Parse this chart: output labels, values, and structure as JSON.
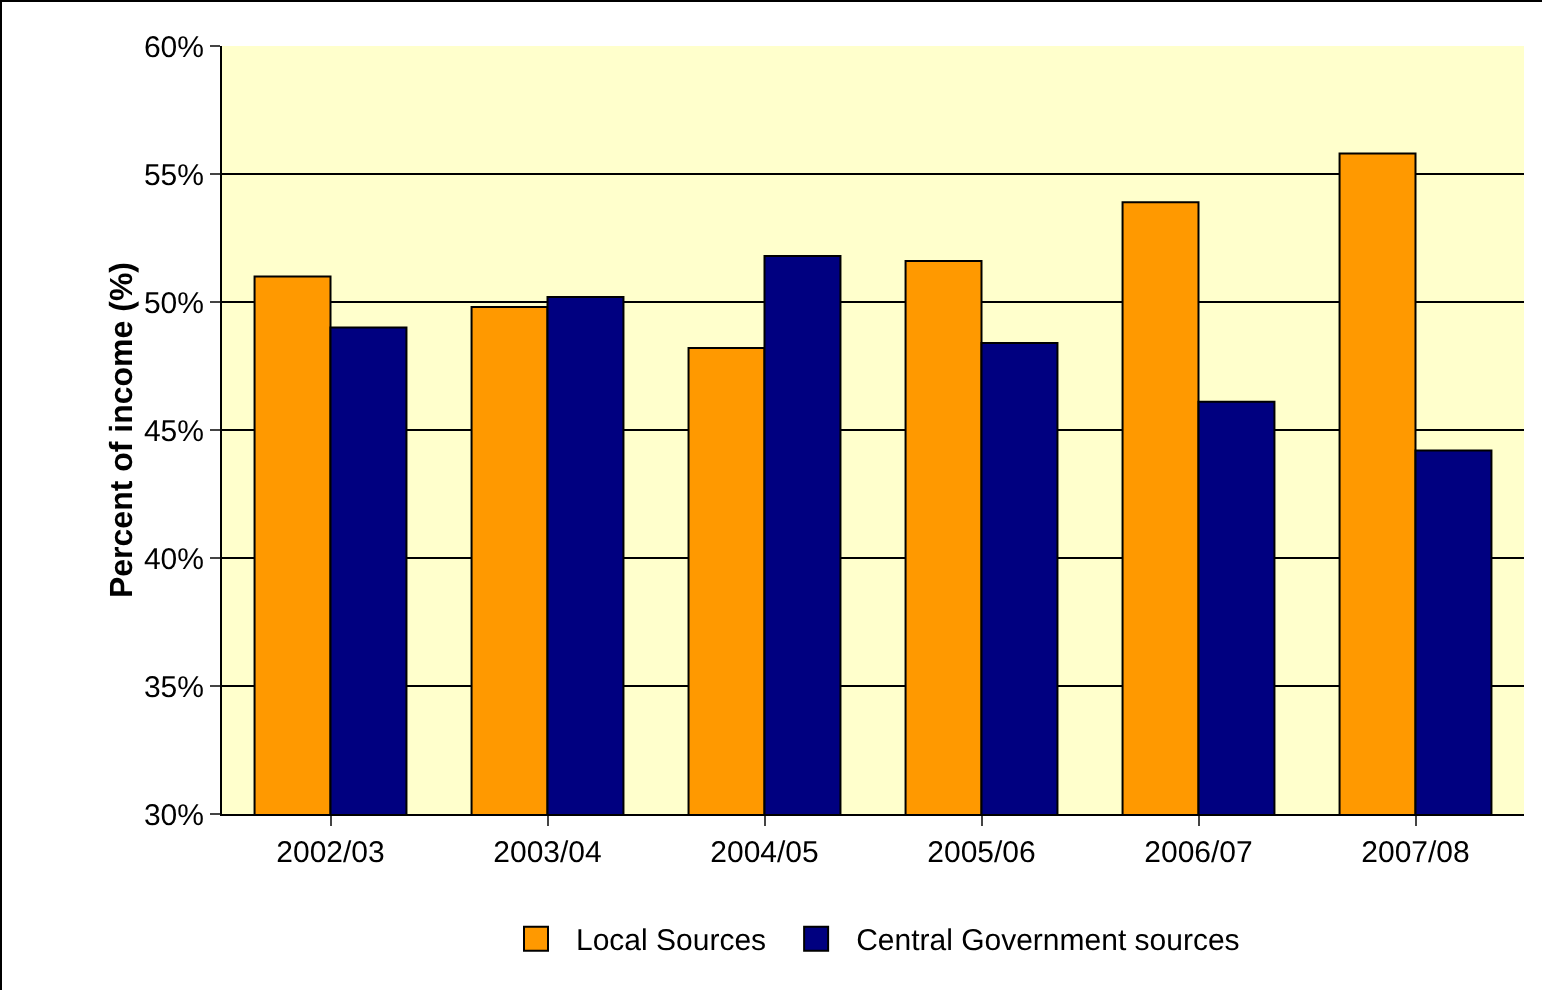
{
  "chart_data": {
    "type": "bar",
    "ylabel": "Percent of income (%)",
    "categories": [
      "2002/03",
      "2003/04",
      "2004/05",
      "2005/06",
      "2006/07",
      "2007/08"
    ],
    "series": [
      {
        "name": "Local Sources",
        "color": "#ff9900",
        "values": [
          51.0,
          49.8,
          48.2,
          51.6,
          53.9,
          55.8
        ]
      },
      {
        "name": "Central Government sources",
        "color": "#000080",
        "values": [
          49.0,
          50.2,
          51.8,
          48.4,
          46.1,
          44.2
        ]
      }
    ],
    "ylim": [
      30,
      60
    ],
    "yticks": [
      {
        "value": 30,
        "label": "30%"
      },
      {
        "value": 35,
        "label": "35%"
      },
      {
        "value": 40,
        "label": "40%"
      },
      {
        "value": 45,
        "label": "45%"
      },
      {
        "value": 50,
        "label": "50%"
      },
      {
        "value": 55,
        "label": "55%"
      },
      {
        "value": 60,
        "label": "60%"
      }
    ],
    "grid": "y",
    "legend": "bottom"
  }
}
